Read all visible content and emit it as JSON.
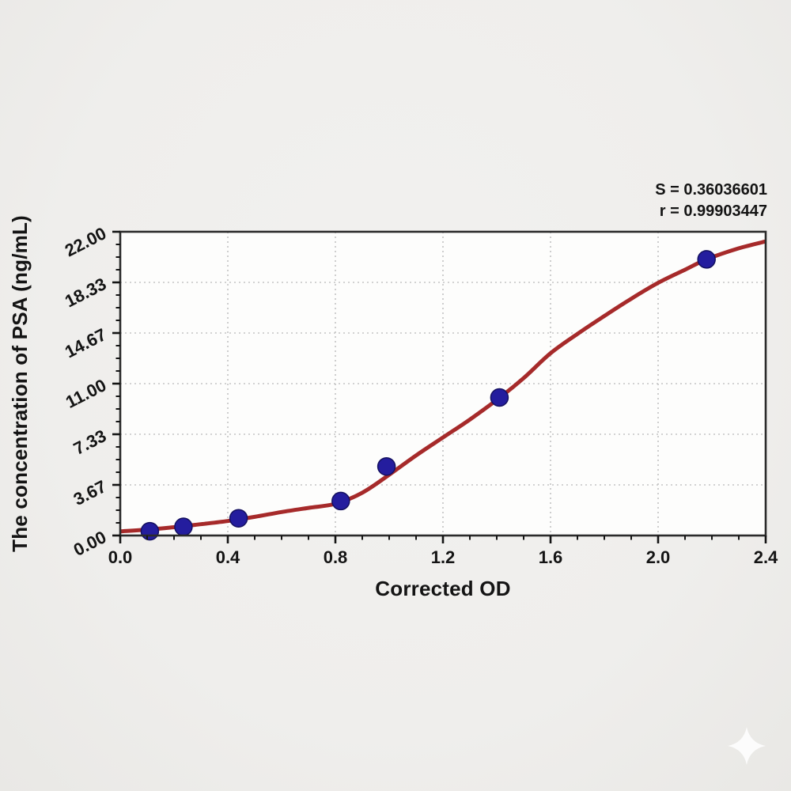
{
  "chart_data": {
    "type": "scatter",
    "title": "",
    "xlabel": "Corrected OD",
    "ylabel": "The concentration of PSA (ng/mL)",
    "xlim": [
      0,
      2.4
    ],
    "ylim": [
      0,
      22
    ],
    "x_tick_labels": [
      "0.0",
      "0.4",
      "0.8",
      "1.2",
      "1.6",
      "2.0",
      "2.4"
    ],
    "y_tick_labels": [
      "0.00",
      "3.67",
      "7.33",
      "11.00",
      "14.67",
      "18.33",
      "22.00"
    ],
    "x_minor_divisions_per_major": 4,
    "y_minor_divisions_per_major": 4,
    "grid": "dotted gray lines at interior major ticks, full box frame, ticks outside on left and bottom",
    "legend_position": "none",
    "annotations": [
      "S = 0.36036601",
      "r = 0.99903447"
    ],
    "series": [
      {
        "name": "standard-points",
        "type": "scatter",
        "points": [
          [
            0.11,
            0.31
          ],
          [
            0.235,
            0.63
          ],
          [
            0.44,
            1.25
          ],
          [
            0.82,
            2.5
          ],
          [
            0.99,
            5.0
          ],
          [
            1.41,
            10.0
          ],
          [
            2.18,
            20.0
          ]
        ]
      },
      {
        "name": "4pl-fit-curve",
        "type": "line",
        "points": [
          [
            0.0,
            0.3
          ],
          [
            0.1,
            0.43
          ],
          [
            0.2,
            0.6
          ],
          [
            0.3,
            0.82
          ],
          [
            0.4,
            1.05
          ],
          [
            0.5,
            1.35
          ],
          [
            0.6,
            1.7
          ],
          [
            0.7,
            2.0
          ],
          [
            0.8,
            2.3
          ],
          [
            0.9,
            3.1
          ],
          [
            1.0,
            4.4
          ],
          [
            1.1,
            5.8
          ],
          [
            1.2,
            7.1
          ],
          [
            1.3,
            8.4
          ],
          [
            1.41,
            9.97
          ],
          [
            1.5,
            11.4
          ],
          [
            1.6,
            13.2
          ],
          [
            1.7,
            14.6
          ],
          [
            1.8,
            15.9
          ],
          [
            1.9,
            17.15
          ],
          [
            2.0,
            18.3
          ],
          [
            2.1,
            19.25
          ],
          [
            2.18,
            20.0
          ],
          [
            2.3,
            20.8
          ],
          [
            2.4,
            21.3
          ]
        ]
      }
    ],
    "colors": {
      "page_bg": "#efeeec",
      "plot_bg": "#fdfdfc",
      "frame": "#2b2b2b",
      "grid": "#c3c3c3",
      "curve": "#a62a2a",
      "point_fill": "#241d9e",
      "point_edge": "#141060",
      "text": "#141414",
      "watermark": "#ffffff"
    },
    "icons": {
      "watermark": "sparkle-icon"
    }
  }
}
